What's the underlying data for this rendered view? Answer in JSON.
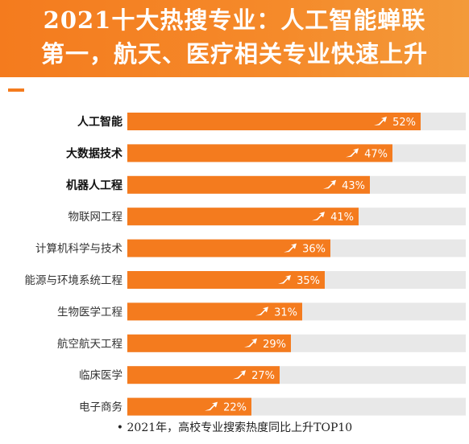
{
  "header": {
    "title_line1": "2021十大热搜专业：人工智能蝉联",
    "title_line2": "第一，航天、医疗相关专业快速上升"
  },
  "footnote": "• 2021年，高校专业搜索热度同比上升TOP10",
  "colors": {
    "header_bg": "#f47b1e",
    "bar_fill": "#f47b1e",
    "bar_track": "#e8e8e8",
    "label_text": "#333333"
  },
  "chart_data": {
    "type": "bar",
    "orientation": "horizontal",
    "categories": [
      "人工智能",
      "大数据技术",
      "机器人工程",
      "物联网工程",
      "计算机科学与技术",
      "能源与环境系统工程",
      "生物医学工程",
      "航空航天工程",
      "临床医学",
      "电子商务"
    ],
    "values": [
      52,
      47,
      43,
      41,
      36,
      35,
      31,
      29,
      27,
      22
    ],
    "value_labels": [
      "52%",
      "47%",
      "43%",
      "41%",
      "36%",
      "35%",
      "31%",
      "29%",
      "27%",
      "22%"
    ],
    "bold_categories": [
      true,
      true,
      true,
      false,
      false,
      false,
      false,
      false,
      false,
      false
    ],
    "unit": "%",
    "xlim": [
      0,
      60
    ],
    "grid": false,
    "legend": "none",
    "bar_icon": "trend-up-arrow-icon"
  }
}
